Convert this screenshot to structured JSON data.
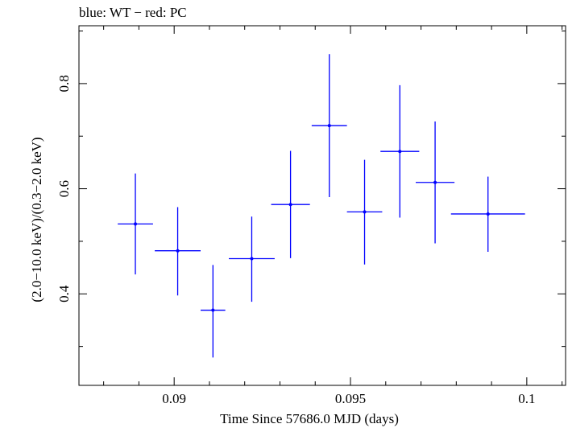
{
  "chart_data": {
    "type": "scatter",
    "title": "blue: WT − red: PC",
    "xlabel": "Time Since 57686.0 MJD (days)",
    "ylabel": "(2.0−10.0 keV)/(0.3−2.0 keV)",
    "xlim": [
      0.0873,
      0.1011
    ],
    "ylim": [
      0.226,
      0.91
    ],
    "xticks": [
      {
        "value": 0.09,
        "label": "0.09"
      },
      {
        "value": 0.095,
        "label": "0.095"
      },
      {
        "value": 0.1,
        "label": "0.1"
      }
    ],
    "yticks": [
      {
        "value": 0.4,
        "label": "0.4"
      },
      {
        "value": 0.6,
        "label": "0.6"
      },
      {
        "value": 0.8,
        "label": "0.8"
      }
    ],
    "xminor_step": 0.001,
    "yminor_step": 0.1,
    "grid": false,
    "color": "#0000ff",
    "series": [
      {
        "points": [
          {
            "x": 0.0889,
            "y": 0.533,
            "xerr": 0.0005,
            "yerr_lo": 0.096,
            "yerr_hi": 0.096
          },
          {
            "x": 0.0901,
            "y": 0.482,
            "xerr": 0.00065,
            "yerr_lo": 0.085,
            "yerr_hi": 0.083
          },
          {
            "x": 0.0911,
            "y": 0.369,
            "xerr": 0.00035,
            "yerr_lo": 0.09,
            "yerr_hi": 0.086
          },
          {
            "x": 0.0922,
            "y": 0.467,
            "xerr": 0.00065,
            "yerr_lo": 0.082,
            "yerr_hi": 0.08
          },
          {
            "x": 0.0933,
            "y": 0.57,
            "xerr": 0.00055,
            "yerr_lo": 0.102,
            "yerr_hi": 0.102
          },
          {
            "x": 0.0944,
            "y": 0.72,
            "xerr": 0.0005,
            "yerr_lo": 0.136,
            "yerr_hi": 0.136
          },
          {
            "x": 0.0954,
            "y": 0.556,
            "xerr": 0.0005,
            "yerr_lo": 0.1,
            "yerr_hi": 0.099
          },
          {
            "x": 0.0964,
            "y": 0.671,
            "xerr": 0.00055,
            "yerr_lo": 0.126,
            "yerr_hi": 0.126
          },
          {
            "x": 0.0974,
            "y": 0.612,
            "xerr": 0.00055,
            "yerr_lo": 0.116,
            "yerr_hi": 0.116
          },
          {
            "x": 0.0989,
            "y": 0.552,
            "xerr": 0.00105,
            "yerr_lo": 0.072,
            "yerr_hi": 0.071
          }
        ]
      }
    ]
  }
}
